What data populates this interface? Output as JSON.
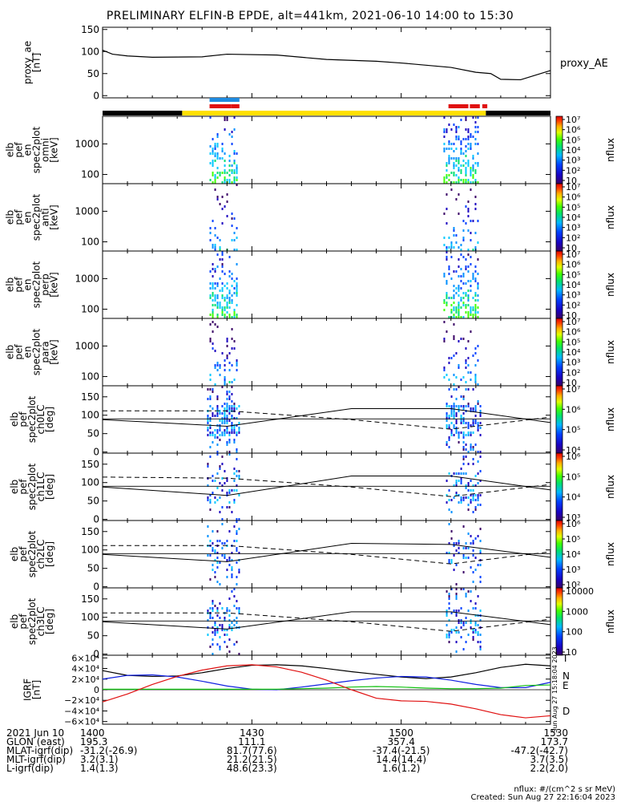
{
  "title": "PRELIMINARY ELFIN-B EPDE, alt=441km, 2021-06-10 14:00 to 15:30",
  "colors": {
    "ae_line": "#000000",
    "bar_black": "#000000",
    "bar_yellow": "#ffe000",
    "bar_blue": "#1f8be0",
    "bar_red": "#e01010",
    "grf_T": "#000000",
    "grf_N": "#1020e0",
    "grf_E": "#10c010",
    "grf_D": "#e01010"
  },
  "chart_data": [
    {
      "type": "line",
      "id": "proxy_ae",
      "ylabel": [
        "proxy_ae",
        "[nT]"
      ],
      "series_label": "proxy_AE",
      "ylim": [
        -5,
        155
      ],
      "yticks": [
        "0",
        "50",
        "100",
        "150"
      ],
      "ytick_values": [
        0,
        50,
        100,
        150
      ],
      "x_minutes": [
        0,
        2,
        5,
        10,
        20,
        25,
        35,
        45,
        50,
        55,
        60,
        65,
        70,
        75,
        78,
        80,
        84,
        90
      ],
      "values": [
        103,
        94,
        90,
        87,
        88,
        94,
        92,
        82,
        80,
        78,
        74,
        69,
        64,
        53,
        50,
        37,
        36,
        57
      ]
    },
    {
      "type": "timeline",
      "id": "segments",
      "black_intervals_min": [
        [
          0,
          16
        ],
        [
          77,
          90
        ]
      ],
      "yellow_interval_min": [
        16,
        77
      ],
      "blue_intervals_min": [
        [
          21.5,
          27.5
        ]
      ],
      "red_intervals_min": [
        [
          21.5,
          25.8
        ],
        [
          25.8,
          27.5
        ],
        [
          69.5,
          73.5
        ],
        [
          73.8,
          75.8
        ],
        [
          76.3,
          77.3
        ]
      ]
    },
    {
      "type": "heatmap",
      "id": "en_omni",
      "ylabel": [
        "elb",
        "pef",
        "en",
        "spec2plot",
        "omni",
        "[keV]"
      ],
      "yscale": "log",
      "yticks": [
        "100",
        "1000"
      ],
      "colorbar_label": "nflux",
      "colorbar_ticks": [
        "10",
        "10²",
        "10³",
        "10⁴",
        "10⁵",
        "10⁶",
        "10⁷"
      ]
    },
    {
      "type": "heatmap",
      "id": "en_anti",
      "ylabel": [
        "elb",
        "pef",
        "en",
        "spec2plot",
        "anti",
        "[keV]"
      ],
      "yscale": "log",
      "yticks": [
        "100",
        "1000"
      ],
      "colorbar_label": "nflux",
      "colorbar_ticks": [
        "10",
        "10²",
        "10³",
        "10⁴",
        "10⁵",
        "10⁶",
        "10⁷"
      ]
    },
    {
      "type": "heatmap",
      "id": "en_perp",
      "ylabel": [
        "elb",
        "pef",
        "en",
        "spec2plot",
        "perp",
        "[keV]"
      ],
      "yscale": "log",
      "yticks": [
        "100",
        "1000"
      ],
      "colorbar_label": "nflux",
      "colorbar_ticks": [
        "10",
        "10²",
        "10³",
        "10⁴",
        "10⁵",
        "10⁶",
        "10⁷"
      ]
    },
    {
      "type": "heatmap",
      "id": "en_para",
      "ylabel": [
        "elb",
        "pef",
        "en",
        "spec2plot",
        "para",
        "[keV]"
      ],
      "yscale": "log",
      "yticks": [
        "100",
        "1000"
      ],
      "colorbar_label": "nflux",
      "colorbar_ticks": [
        "10",
        "10²",
        "10³",
        "10⁴",
        "10⁵",
        "10⁶",
        "10⁷"
      ]
    },
    {
      "type": "heatmap",
      "id": "ch0lc",
      "ylabel": [
        "elb",
        "pef",
        "spec2plot",
        "ch0LC",
        "[deg]"
      ],
      "yticks": [
        "0",
        "50",
        "100",
        "150"
      ],
      "colorbar_label": "nflux",
      "colorbar_ticks": [
        "10⁴",
        "10⁵",
        "10⁶",
        "10⁷"
      ]
    },
    {
      "type": "heatmap",
      "id": "ch1lc",
      "ylabel": [
        "elb",
        "pef",
        "spec2plot",
        "ch1LC",
        "[deg]"
      ],
      "yticks": [
        "0",
        "50",
        "100",
        "150"
      ],
      "colorbar_label": "nflux",
      "colorbar_ticks": [
        "10³",
        "10⁴",
        "10⁵",
        "10⁶"
      ]
    },
    {
      "type": "heatmap",
      "id": "ch2lc",
      "ylabel": [
        "elb",
        "pef",
        "spec2plot",
        "ch2LC",
        "[deg]"
      ],
      "yticks": [
        "0",
        "50",
        "100",
        "150"
      ],
      "colorbar_label": "nflux",
      "colorbar_ticks": [
        "10²",
        "10³",
        "10⁴",
        "10⁵",
        "10⁶"
      ]
    },
    {
      "type": "heatmap",
      "id": "ch3lc",
      "ylabel": [
        "elb",
        "pef",
        "spec2plot",
        "ch3LC",
        "[deg]"
      ],
      "yticks": [
        "0",
        "50",
        "100",
        "150"
      ],
      "colorbar_label": "nflux",
      "colorbar_ticks": [
        "10",
        "100",
        "1000",
        "10000"
      ]
    },
    {
      "type": "line",
      "id": "igrf",
      "ylabel": [
        "IGRF",
        "[nT]"
      ],
      "ylim": [
        -65000,
        65000
      ],
      "yticks": [
        "6×10⁴",
        "4×10⁴",
        "2×10⁴",
        "0",
        "−2×10⁴",
        "−4×10⁴",
        "−6×10⁴"
      ],
      "ytick_values": [
        60000,
        40000,
        20000,
        0,
        -20000,
        -40000,
        -60000
      ],
      "x_minutes": [
        0,
        5,
        10,
        15,
        20,
        25,
        30,
        35,
        40,
        45,
        50,
        55,
        60,
        65,
        70,
        75,
        80,
        85,
        90
      ],
      "series": [
        {
          "name": "T",
          "values": [
            36000,
            27000,
            25000,
            26000,
            32000,
            40000,
            46000,
            47000,
            45000,
            40000,
            34000,
            29000,
            24000,
            21000,
            24000,
            32000,
            42000,
            48000,
            45000
          ]
        },
        {
          "name": "N",
          "values": [
            20000,
            27000,
            28000,
            24000,
            16000,
            7000,
            1000,
            0,
            5000,
            11000,
            17000,
            22000,
            25000,
            24000,
            18000,
            10000,
            4000,
            4000,
            14000
          ]
        },
        {
          "name": "E",
          "values": [
            1000,
            1000,
            1000,
            1000,
            1000,
            1000,
            1000,
            1000,
            2000,
            3000,
            5000,
            6000,
            5000,
            3000,
            2000,
            2000,
            3000,
            8000,
            9000
          ]
        },
        {
          "name": "D",
          "values": [
            -23000,
            -8000,
            10000,
            25000,
            37000,
            45000,
            47000,
            43000,
            33000,
            18000,
            0,
            -16000,
            -21000,
            -22000,
            -27000,
            -36000,
            -47000,
            -53000,
            -49000
          ]
        }
      ]
    }
  ],
  "dashed_lines": {
    "x_minutes": [
      0,
      25,
      50,
      70,
      90
    ],
    "ch0": {
      "solid": [
        88,
        70,
        118,
        118,
        80
      ],
      "dashed": [
        112,
        112,
        88,
        62,
        95
      ]
    },
    "ch1": {
      "solid": [
        88,
        65,
        118,
        118,
        80
      ],
      "dashed": [
        115,
        112,
        88,
        62,
        95
      ]
    },
    "ch2": {
      "solid": [
        88,
        68,
        118,
        115,
        80
      ],
      "dashed": [
        112,
        112,
        88,
        62,
        95
      ]
    },
    "ch3": {
      "solid": [
        88,
        68,
        115,
        115,
        80
      ],
      "dashed": [
        112,
        112,
        88,
        62,
        95
      ]
    }
  },
  "creation_stamp": "Sun Aug 27 15:18:04 2023",
  "xaxis": {
    "rows": [
      {
        "label": "2021 Jun 10",
        "values": [
          "1400",
          "1430",
          "1500",
          "1530"
        ]
      },
      {
        "label": "GLON (east)",
        "values": [
          "195.3",
          "111.1",
          "357.4",
          "173.7"
        ]
      },
      {
        "label": "MLAT-igrf(dip)",
        "values": [
          "-31.2(-26.9)",
          "81.7(77.6)",
          "-37.4(-21.5)",
          "-47.2(-42.7)"
        ]
      },
      {
        "label": "MLT-igrf(dip)",
        "values": [
          "3.2(3.1)",
          "21.2(21.5)",
          "14.4(14.4)",
          "3.7(3.5)"
        ]
      },
      {
        "label": "L-igrf(dip)",
        "values": [
          "1.4(1.3)",
          "48.6(23.3)",
          "1.6(1.2)",
          "2.2(2.0)"
        ]
      }
    ]
  },
  "footer": {
    "units": "nflux: #/(cm^2 s sr MeV)",
    "created": "Created: Sun Aug 27 22:16:04 2023"
  }
}
